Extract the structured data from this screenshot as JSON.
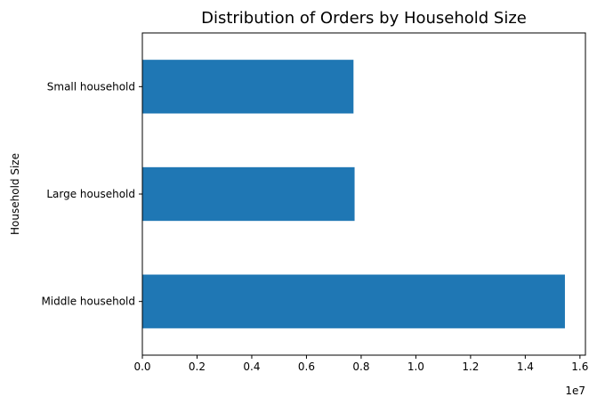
{
  "chart_data": {
    "type": "bar",
    "orientation": "horizontal",
    "title": "Distribution of Orders by Household Size",
    "xlabel": "",
    "ylabel": "Household Size",
    "categories": [
      "Middle household",
      "Large household",
      "Small household"
    ],
    "values": [
      15450000,
      7760000,
      7720000
    ],
    "xlim": [
      0,
      16200000
    ],
    "x_ticks": [
      0,
      2000000,
      4000000,
      6000000,
      8000000,
      10000000,
      12000000,
      14000000,
      16000000
    ],
    "x_tick_labels": [
      "0.0",
      "0.2",
      "0.4",
      "0.6",
      "0.8",
      "1.0",
      "1.2",
      "1.4",
      "1.6"
    ],
    "x_offset_text": "1e7",
    "bar_color": "#1f77b4",
    "grid": false,
    "legend": "none"
  }
}
